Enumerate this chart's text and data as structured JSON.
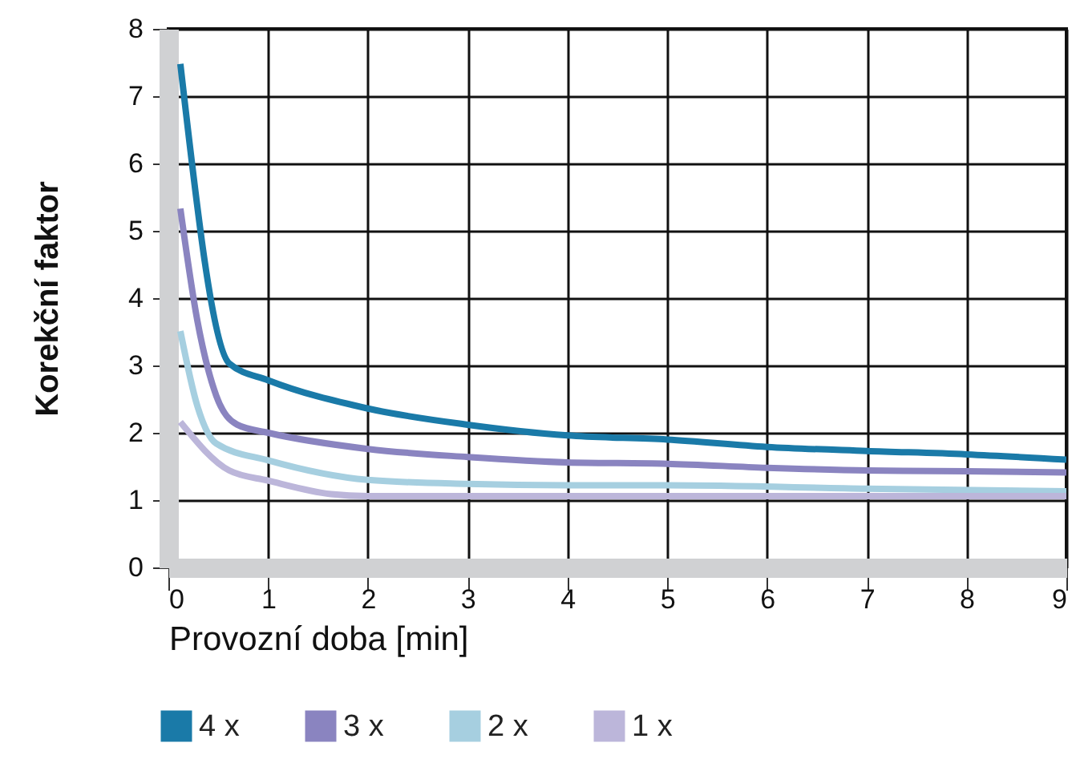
{
  "chart_data": {
    "type": "line",
    "xlabel": "Provozní doba [min]",
    "ylabel": "Korekční faktor",
    "xlim": [
      0,
      9
    ],
    "ylim": [
      0,
      8
    ],
    "xticks": [
      0,
      1,
      2,
      3,
      4,
      5,
      6,
      7,
      8,
      9
    ],
    "yticks": [
      0,
      1,
      2,
      3,
      4,
      5,
      6,
      7,
      8
    ],
    "grid": true,
    "legend": "bottom",
    "line_style": "solid",
    "series": [
      {
        "name": "4 x",
        "color": "#1a7aa8",
        "x": [
          0.12,
          0.61,
          1,
          2,
          3,
          4,
          5,
          6,
          7,
          8,
          9
        ],
        "values": [
          7.48,
          3.03,
          2.78,
          2.36,
          2.12,
          1.96,
          1.9,
          1.79,
          1.73,
          1.68,
          1.6
        ]
      },
      {
        "name": "3 x",
        "color": "#8a84c0",
        "x": [
          0.12,
          0.29,
          0.48,
          0.69,
          1,
          2,
          3,
          4,
          5,
          6,
          7,
          8,
          9
        ],
        "values": [
          5.33,
          3.67,
          2.55,
          2.12,
          2.0,
          1.76,
          1.64,
          1.56,
          1.54,
          1.48,
          1.44,
          1.43,
          1.41
        ]
      },
      {
        "name": "2 x",
        "color": "#a6cfe0",
        "x": [
          0.12,
          0.29,
          0.48,
          1,
          2,
          3,
          4,
          5,
          7,
          9
        ],
        "values": [
          3.51,
          2.4,
          1.84,
          1.59,
          1.3,
          1.24,
          1.22,
          1.22,
          1.17,
          1.13
        ]
      },
      {
        "name": "1 x",
        "color": "#bcb6da",
        "x": [
          0.12,
          0.61,
          1,
          1.63,
          2,
          9
        ],
        "values": [
          2.16,
          1.44,
          1.29,
          1.09,
          1.06,
          1.06
        ]
      }
    ]
  }
}
